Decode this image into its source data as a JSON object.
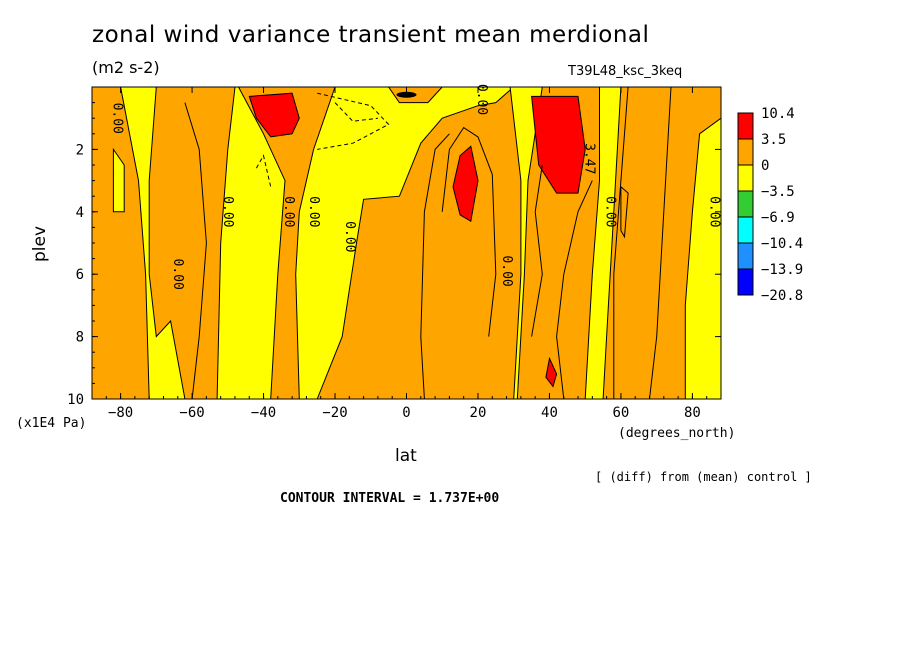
{
  "header": {
    "title": "zonal wind variance transient mean merdional",
    "subtitle": "(m2 s-2)",
    "run_name": "T39L48_ksc_3keq"
  },
  "footer": {
    "diff_note": "[ (diff) from (mean) control ]",
    "contour_interval": "CONTOUR INTERVAL = 1.737E+00"
  },
  "chart_data": {
    "type": "heatmap",
    "title": "zonal wind variance transient mean merdional",
    "xlabel": "lat",
    "xunits": "(degrees_north)",
    "ylabel": "plev",
    "yunits": "(x1E4 Pa)",
    "xlim": [
      -88,
      88
    ],
    "ylim": [
      10,
      0
    ],
    "xticks": [
      -80,
      -60,
      -40,
      -20,
      0,
      20,
      40,
      60,
      80
    ],
    "yticks": [
      2,
      4,
      6,
      8,
      10
    ],
    "colorbar": {
      "levels": [
        "10.4",
        "3.5",
        "0",
        "-3.5",
        "-6.9",
        "-10.4",
        "-13.9",
        "-20.8"
      ],
      "colors": [
        "#ff0000",
        "#ffa500",
        "#ffff00",
        "#32cd32",
        "#00ffff",
        "#1e90ff",
        "#0000ff"
      ]
    },
    "contour_labels": [
      {
        "text": "0.00",
        "lat": -82,
        "plev": 1.0
      },
      {
        "text": "0.00",
        "lat": -65,
        "plev": 6.0
      },
      {
        "text": "0.00",
        "lat": -51,
        "plev": 4.0
      },
      {
        "text": "0.00",
        "lat": -34,
        "plev": 4.0
      },
      {
        "text": "0.00",
        "lat": -27,
        "plev": 4.0
      },
      {
        "text": "0.00",
        "lat": -17,
        "plev": 4.8
      },
      {
        "text": "0.00",
        "lat": 20,
        "plev": 0.4
      },
      {
        "text": "0.00",
        "lat": 27,
        "plev": 5.9
      },
      {
        "text": "3.47",
        "lat": 50,
        "plev": 2.3
      },
      {
        "text": "0.00",
        "lat": 56,
        "plev": 4.0
      },
      {
        "text": "0.00",
        "lat": 85,
        "plev": 4.0
      }
    ]
  }
}
